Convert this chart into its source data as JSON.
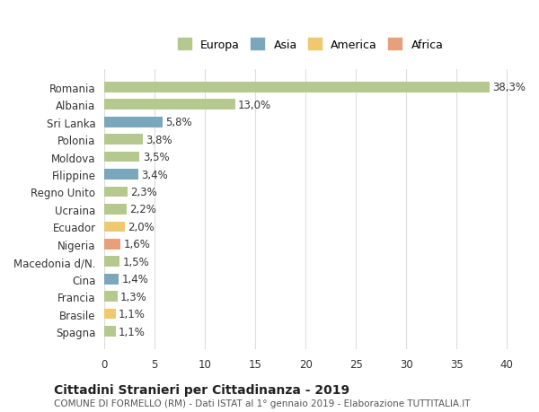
{
  "countries": [
    "Romania",
    "Albania",
    "Sri Lanka",
    "Polonia",
    "Moldova",
    "Filippine",
    "Regno Unito",
    "Ucraina",
    "Ecuador",
    "Nigeria",
    "Macedonia d/N.",
    "Cina",
    "Francia",
    "Brasile",
    "Spagna"
  ],
  "values": [
    38.3,
    13.0,
    5.8,
    3.8,
    3.5,
    3.4,
    2.3,
    2.2,
    2.0,
    1.6,
    1.5,
    1.4,
    1.3,
    1.1,
    1.1
  ],
  "labels": [
    "38,3%",
    "13,0%",
    "5,8%",
    "3,8%",
    "3,5%",
    "3,4%",
    "2,3%",
    "2,2%",
    "2,0%",
    "1,6%",
    "1,5%",
    "1,4%",
    "1,3%",
    "1,1%",
    "1,1%"
  ],
  "continents": [
    "Europa",
    "Europa",
    "Asia",
    "Europa",
    "Europa",
    "Asia",
    "Europa",
    "Europa",
    "America",
    "Africa",
    "Europa",
    "Asia",
    "Europa",
    "America",
    "Europa"
  ],
  "colors": {
    "Europa": "#b5c98e",
    "Asia": "#7ba7bc",
    "America": "#f0c86e",
    "Africa": "#e8a07a"
  },
  "legend_order": [
    "Europa",
    "Asia",
    "America",
    "Africa"
  ],
  "xlim": [
    0,
    41
  ],
  "xticks": [
    0,
    5,
    10,
    15,
    20,
    25,
    30,
    35,
    40
  ],
  "title_main": "Cittadini Stranieri per Cittadinanza - 2019",
  "title_sub": "COMUNE DI FORMELLO (RM) - Dati ISTAT al 1° gennaio 2019 - Elaborazione TUTTITALIA.IT",
  "bg_color": "#ffffff",
  "grid_color": "#dddddd",
  "bar_height": 0.6,
  "label_fontsize": 8.5,
  "ytick_fontsize": 8.5,
  "xtick_fontsize": 8.5,
  "title_main_fontsize": 10,
  "title_sub_fontsize": 7.5
}
